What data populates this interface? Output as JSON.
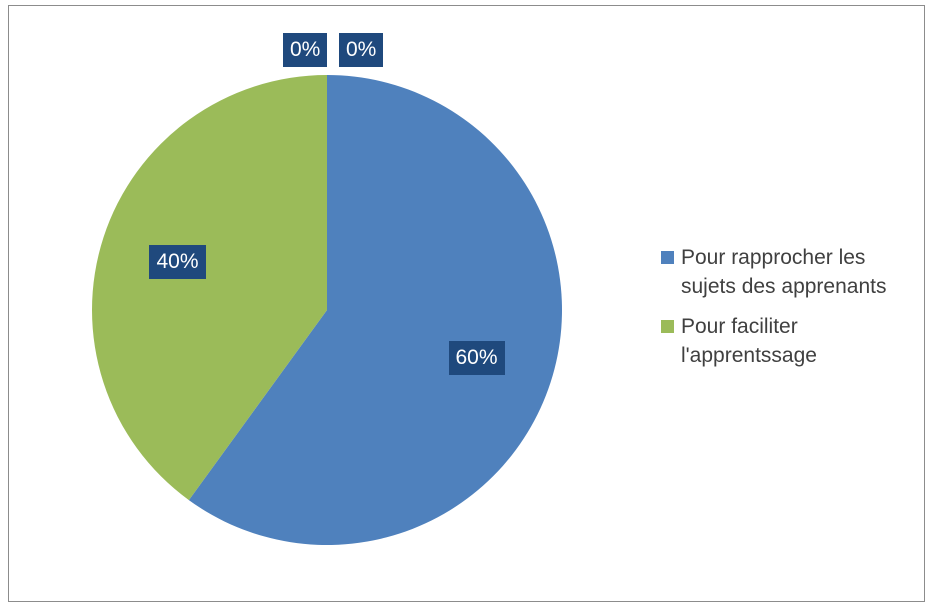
{
  "chart_data": {
    "type": "pie",
    "title": "",
    "series": [
      {
        "name": "Pour rapprocher les sujets des apprenants",
        "value": 60,
        "label": "60%",
        "color": "#4f81bd"
      },
      {
        "name": "Pour faciliter l'apprentssage",
        "value": 40,
        "label": "40%",
        "color": "#9bbb59"
      },
      {
        "name": "",
        "value": 0,
        "label": "0%",
        "color": "#c0504d"
      },
      {
        "name": "",
        "value": 0,
        "label": "0%",
        "color": "#8064a2"
      }
    ],
    "legend": {
      "position": "right",
      "items": [
        {
          "label": "Pour rapprocher les sujets des apprenants",
          "color": "#4f81bd"
        },
        {
          "label": "Pour faciliter l'apprentssage",
          "color": "#9bbb59"
        }
      ]
    },
    "label_box_color": "#1f497d"
  }
}
